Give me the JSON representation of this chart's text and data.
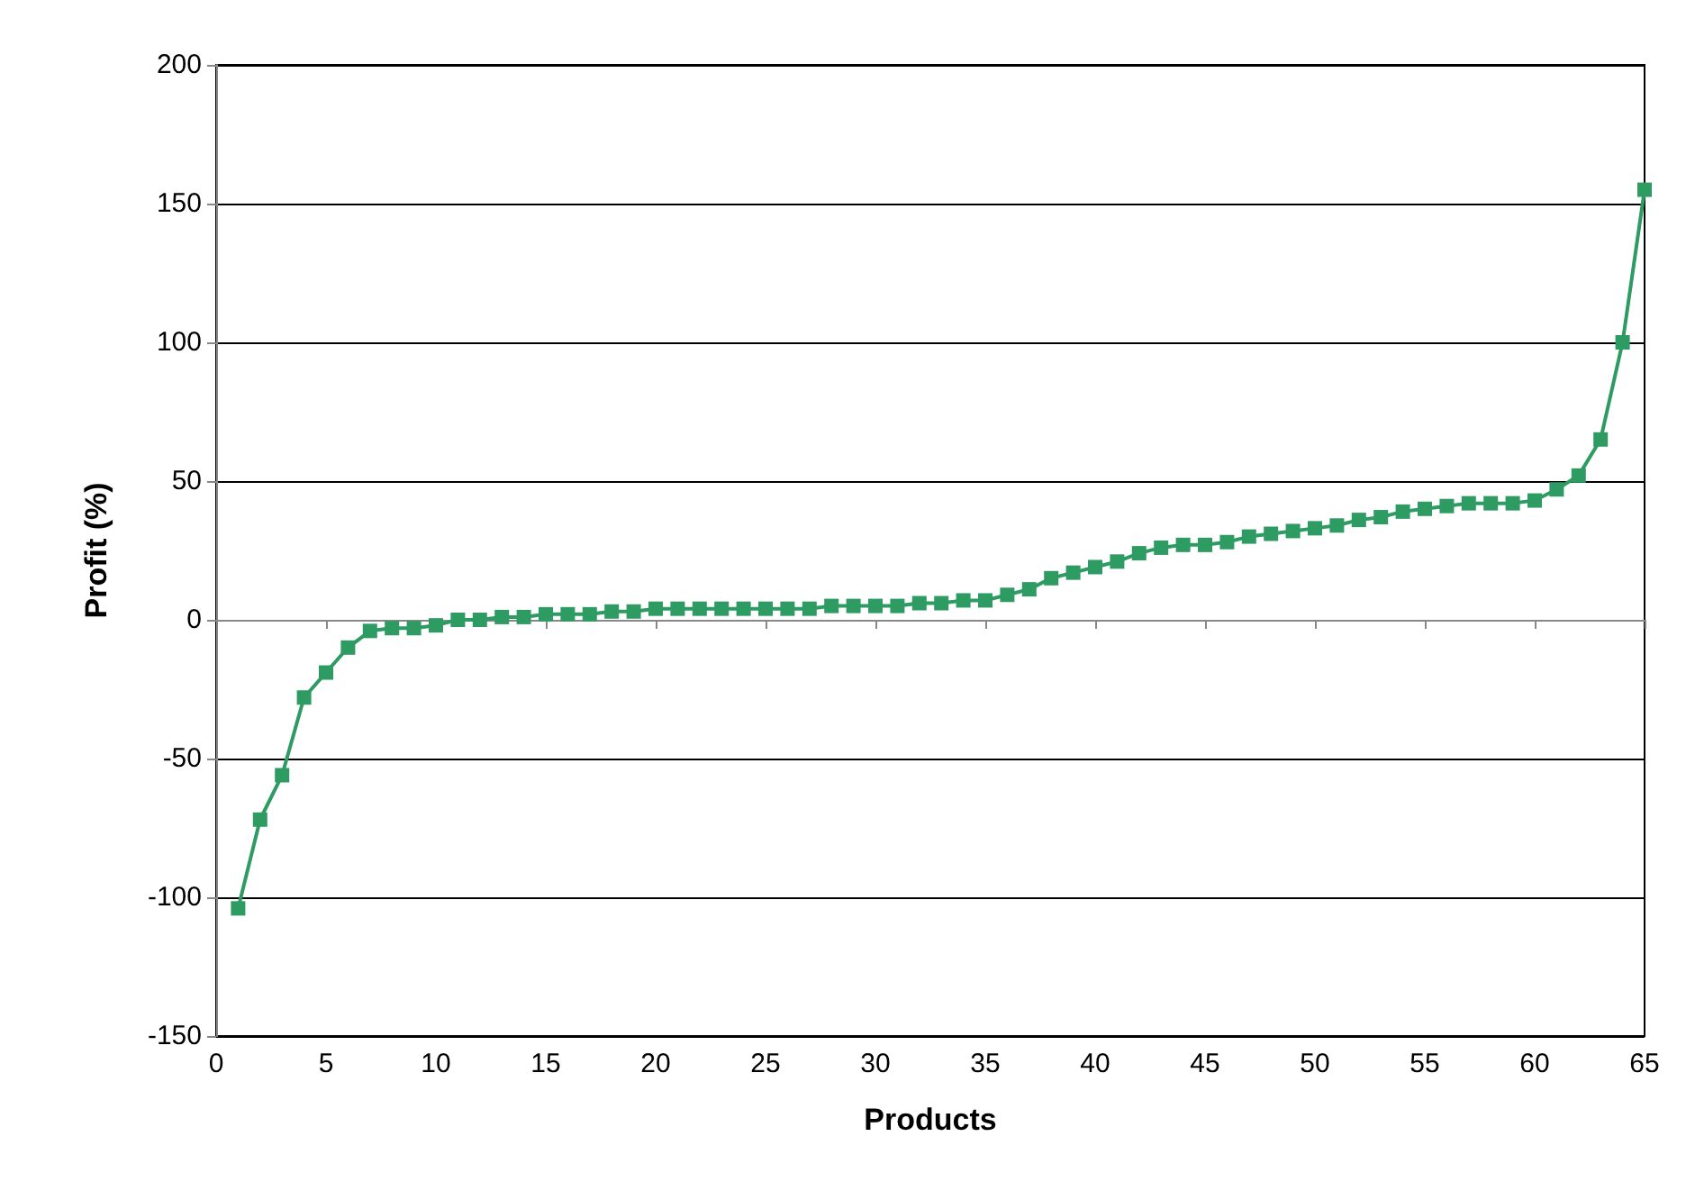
{
  "chart_data": {
    "type": "line",
    "xlabel": "Products",
    "ylabel": "Profit (%)",
    "x": [
      1,
      2,
      3,
      4,
      5,
      6,
      7,
      8,
      9,
      10,
      11,
      12,
      13,
      14,
      15,
      16,
      17,
      18,
      19,
      20,
      21,
      22,
      23,
      24,
      25,
      26,
      27,
      28,
      29,
      30,
      31,
      32,
      33,
      34,
      35,
      36,
      37,
      38,
      39,
      40,
      41,
      42,
      43,
      44,
      45,
      46,
      47,
      48,
      49,
      50,
      51,
      52,
      53,
      54,
      55,
      56,
      57,
      58,
      59,
      60,
      61,
      62,
      63,
      64,
      65
    ],
    "series": [
      {
        "color": "#2e9b63",
        "values": [
          -104,
          -72,
          -56,
          -28,
          -19,
          -10,
          -4,
          -3,
          -3,
          -2,
          0,
          0,
          1,
          1,
          2,
          2,
          2,
          3,
          3,
          4,
          4,
          4,
          4,
          4,
          4,
          4,
          4,
          5,
          5,
          5,
          5,
          6,
          6,
          7,
          7,
          9,
          11,
          15,
          17,
          19,
          21,
          24,
          26,
          27,
          27,
          28,
          30,
          31,
          32,
          33,
          34,
          36,
          37,
          39,
          40,
          41,
          42,
          42,
          42,
          43,
          47,
          52,
          65,
          100,
          155
        ]
      }
    ],
    "xlim": [
      0,
      65
    ],
    "xticks": [
      0,
      5,
      10,
      15,
      20,
      25,
      30,
      35,
      40,
      45,
      50,
      55,
      60,
      65
    ],
    "ylim": [
      -150,
      200
    ],
    "yticks": [
      -150,
      -100,
      -50,
      0,
      50,
      100,
      150,
      200
    ],
    "grid": "y",
    "marker": "square",
    "line_style": "solid"
  }
}
